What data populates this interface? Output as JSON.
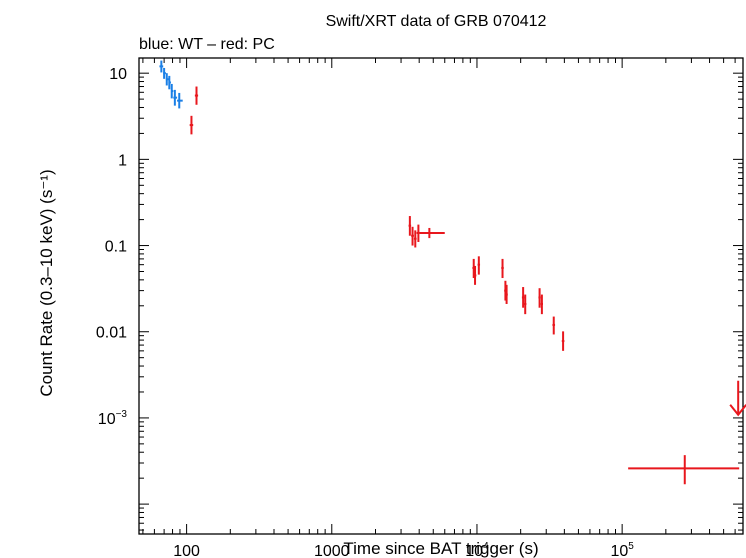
{
  "chart_data": {
    "type": "scatter",
    "title": "Swift/XRT data of GRB 070412",
    "subtitle": "blue: WT – red: PC",
    "xlabel": "Time since BAT trigger (s)",
    "ylabel": "Count Rate (0.3–10 keV) (s⁻¹)",
    "xscale": "log",
    "yscale": "log",
    "xlim": [
      47,
      680000
    ],
    "ylim": [
      4.5e-05,
      15
    ],
    "x_ticks": [
      {
        "value": 100,
        "label": "100",
        "sup": ""
      },
      {
        "value": 1000,
        "label": "1000",
        "sup": ""
      },
      {
        "value": 10000,
        "label": "10",
        "sup": "4"
      },
      {
        "value": 100000,
        "label": "10",
        "sup": "5"
      }
    ],
    "y_ticks": [
      {
        "value": 10,
        "label": "10",
        "sup": ""
      },
      {
        "value": 1,
        "label": "1",
        "sup": ""
      },
      {
        "value": 0.1,
        "label": "0.1",
        "sup": ""
      },
      {
        "value": 0.01,
        "label": "0.01",
        "sup": ""
      },
      {
        "value": 0.001,
        "label": "10",
        "sup": "−3"
      }
    ],
    "series": [
      {
        "name": "WT",
        "color": "#1a7fe6",
        "points": [
          {
            "x": 67,
            "xlo": 65,
            "xhi": 69,
            "y": 12.0,
            "ylo": 10.2,
            "yhi": 14.0
          },
          {
            "x": 70,
            "xlo": 69,
            "xhi": 72,
            "y": 10.0,
            "ylo": 8.6,
            "yhi": 11.5
          },
          {
            "x": 73,
            "xlo": 72,
            "xhi": 75,
            "y": 8.5,
            "ylo": 7.2,
            "yhi": 10.0
          },
          {
            "x": 76,
            "xlo": 75,
            "xhi": 78,
            "y": 7.8,
            "ylo": 6.5,
            "yhi": 9.3
          },
          {
            "x": 79,
            "xlo": 78,
            "xhi": 81,
            "y": 6.2,
            "ylo": 5.1,
            "yhi": 7.5
          },
          {
            "x": 83,
            "xlo": 81,
            "xhi": 86,
            "y": 5.2,
            "ylo": 4.2,
            "yhi": 6.4
          },
          {
            "x": 89,
            "xlo": 86,
            "xhi": 94,
            "y": 4.8,
            "ylo": 3.9,
            "yhi": 5.9
          }
        ]
      },
      {
        "name": "PC",
        "color": "#e8171d",
        "points": [
          {
            "x": 108,
            "xlo": 105,
            "xhi": 111,
            "y": 2.5,
            "ylo": 1.95,
            "yhi": 3.2
          },
          {
            "x": 117,
            "xlo": 114,
            "xhi": 120,
            "y": 5.5,
            "ylo": 4.3,
            "yhi": 7.0
          },
          {
            "x": 3450,
            "xlo": 3380,
            "xhi": 3520,
            "y": 0.17,
            "ylo": 0.13,
            "yhi": 0.22
          },
          {
            "x": 3600,
            "xlo": 3520,
            "xhi": 3680,
            "y": 0.13,
            "ylo": 0.1,
            "yhi": 0.165
          },
          {
            "x": 3760,
            "xlo": 3680,
            "xhi": 3840,
            "y": 0.12,
            "ylo": 0.095,
            "yhi": 0.15
          },
          {
            "x": 3950,
            "xlo": 3840,
            "xhi": 4050,
            "y": 0.14,
            "ylo": 0.11,
            "yhi": 0.175
          },
          {
            "x": 4700,
            "xlo": 4050,
            "xhi": 6000,
            "y": 0.14,
            "ylo": 0.122,
            "yhi": 0.16
          },
          {
            "x": 9500,
            "xlo": 9300,
            "xhi": 9700,
            "y": 0.055,
            "ylo": 0.042,
            "yhi": 0.07
          },
          {
            "x": 9700,
            "xlo": 9500,
            "xhi": 9900,
            "y": 0.045,
            "ylo": 0.035,
            "yhi": 0.058
          },
          {
            "x": 10300,
            "xlo": 10100,
            "xhi": 10500,
            "y": 0.06,
            "ylo": 0.046,
            "yhi": 0.075
          },
          {
            "x": 15000,
            "xlo": 14700,
            "xhi": 15300,
            "y": 0.055,
            "ylo": 0.042,
            "yhi": 0.07
          },
          {
            "x": 15700,
            "xlo": 15400,
            "xhi": 16000,
            "y": 0.03,
            "ylo": 0.023,
            "yhi": 0.039
          },
          {
            "x": 16000,
            "xlo": 15700,
            "xhi": 16300,
            "y": 0.027,
            "ylo": 0.021,
            "yhi": 0.035
          },
          {
            "x": 20800,
            "xlo": 20400,
            "xhi": 21200,
            "y": 0.025,
            "ylo": 0.019,
            "yhi": 0.033
          },
          {
            "x": 21500,
            "xlo": 21100,
            "xhi": 21900,
            "y": 0.021,
            "ylo": 0.016,
            "yhi": 0.027
          },
          {
            "x": 27000,
            "xlo": 26500,
            "xhi": 27500,
            "y": 0.025,
            "ylo": 0.019,
            "yhi": 0.032
          },
          {
            "x": 28000,
            "xlo": 27500,
            "xhi": 28500,
            "y": 0.021,
            "ylo": 0.016,
            "yhi": 0.027
          },
          {
            "x": 33800,
            "xlo": 33100,
            "xhi": 34500,
            "y": 0.012,
            "ylo": 0.0093,
            "yhi": 0.015
          },
          {
            "x": 39200,
            "xlo": 38400,
            "xhi": 40000,
            "y": 0.0078,
            "ylo": 0.006,
            "yhi": 0.0101
          },
          {
            "x": 270000,
            "xlo": 110000,
            "xhi": 640000,
            "y": 0.00026,
            "ylo": 0.00017,
            "yhi": 0.00037
          }
        ],
        "upper_limits": [
          {
            "x": 630000,
            "y": 0.0027
          }
        ]
      }
    ]
  }
}
